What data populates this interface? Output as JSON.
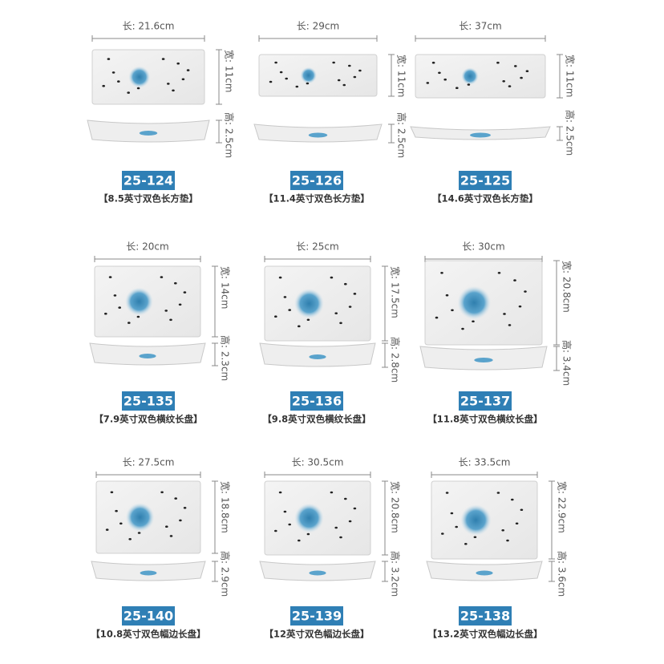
{
  "items": [
    {
      "length": "长: 21.6cm",
      "width": "宽: 11cm",
      "height": "高: 2.5cm",
      "code": "25-124",
      "name": "【8.5英寸双色长方垫】"
    },
    {
      "length": "长: 29cm",
      "width": "宽: 11cm",
      "height": "高: 2.5cm",
      "code": "25-126",
      "name": "【11.4英寸双色长方垫】"
    },
    {
      "length": "长: 37cm",
      "width": "宽: 11cm",
      "height": "高: 2.5cm",
      "code": "25-125",
      "name": "【14.6英寸双色长方垫】"
    },
    {
      "length": "长: 20cm",
      "width": "宽: 14cm",
      "height": "高: 2.3cm",
      "code": "25-135",
      "name": "【7.9英寸双色横纹长盘】"
    },
    {
      "length": "长: 25cm",
      "width": "宽: 17.5cm",
      "height": "高: 2.8cm",
      "code": "25-136",
      "name": "【9.8英寸双色横纹长盘】"
    },
    {
      "length": "长: 30cm",
      "width": "宽: 20.8cm",
      "height": "高: 3.4cm",
      "code": "25-137",
      "name": "【11.8英寸双色横纹长盘】"
    },
    {
      "length": "长: 27.5cm",
      "width": "宽: 18.8cm",
      "height": "高: 2.9cm",
      "code": "25-140",
      "name": "【10.8英寸双色幅边长盘】"
    },
    {
      "length": "长: 30.5cm",
      "width": "宽: 20.8cm",
      "height": "高: 3.2cm",
      "code": "25-139",
      "name": "【12英寸双色幅边长盘】"
    },
    {
      "length": "长: 33.5cm",
      "width": "宽: 22.9cm",
      "height": "高: 3.6cm",
      "code": "25-138",
      "name": "【13.2英寸双色幅边长盘】"
    }
  ]
}
